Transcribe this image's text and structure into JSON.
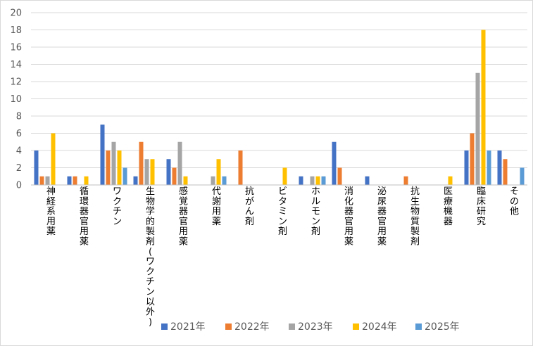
{
  "chart_data": {
    "type": "bar",
    "categories": [
      "神経系用薬",
      "循環器官用薬",
      "ワクチン",
      "生物学的製剤(ワクチン以外)",
      "感覚器官用薬",
      "代謝用薬",
      "抗がん剤",
      "ビタミン剤",
      "ホルモン剤",
      "消化器官用薬",
      "泌尿器官用薬",
      "抗生物質製剤",
      "医療機器",
      "臨床研究",
      "その他"
    ],
    "series": [
      {
        "name": "2021年",
        "color": "#4472c4",
        "values": [
          4,
          1,
          7,
          1,
          3,
          0,
          0,
          0,
          1,
          5,
          1,
          0,
          0,
          4,
          4
        ]
      },
      {
        "name": "2022年",
        "color": "#ed7d31",
        "values": [
          1,
          1,
          4,
          5,
          2,
          0,
          4,
          0,
          0,
          2,
          0,
          1,
          0,
          6,
          3
        ]
      },
      {
        "name": "2023年",
        "color": "#a5a5a5",
        "values": [
          1,
          0,
          5,
          3,
          5,
          1,
          0,
          0,
          1,
          0,
          0,
          0,
          0,
          13,
          0
        ]
      },
      {
        "name": "2024年",
        "color": "#ffc000",
        "values": [
          6,
          1,
          4,
          3,
          1,
          3,
          0,
          2,
          1,
          0,
          0,
          0,
          1,
          18,
          0
        ]
      },
      {
        "name": "2025年",
        "color": "#5b9bd5",
        "values": [
          0,
          0,
          2,
          0,
          0,
          1,
          0,
          0,
          1,
          0,
          0,
          0,
          0,
          4,
          2
        ]
      }
    ],
    "ylim": [
      0,
      20
    ],
    "yticks": [
      0,
      2,
      4,
      6,
      8,
      10,
      12,
      14,
      16,
      18,
      20
    ],
    "grid": true,
    "legend": "bottom"
  }
}
